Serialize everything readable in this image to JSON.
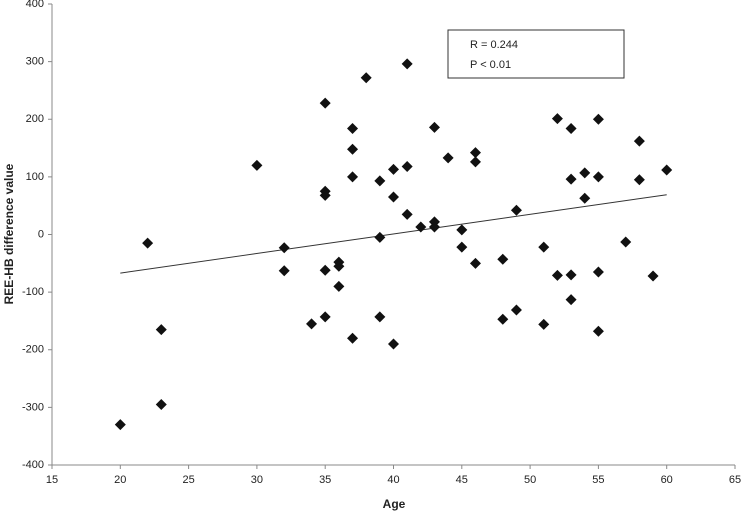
{
  "chart_data": {
    "type": "scatter",
    "xlabel": "Age",
    "ylabel": "REE-HB difference value",
    "annotations": [
      "R = 0.244",
      "P < 0.01"
    ],
    "xlim": [
      15,
      65
    ],
    "xticks": [
      15,
      20,
      25,
      30,
      35,
      40,
      45,
      50,
      55,
      60,
      65
    ],
    "ylim": [
      -400,
      400
    ],
    "yticks": [
      -400,
      -300,
      -200,
      -100,
      0,
      100,
      200,
      300,
      400
    ],
    "grid": false,
    "color": "#111111",
    "x": [
      20,
      22,
      23,
      23,
      30,
      32,
      32,
      34,
      35,
      35,
      35,
      35,
      35,
      36,
      36,
      36,
      37,
      37,
      37,
      37,
      38,
      39,
      39,
      39,
      40,
      40,
      40,
      41,
      41,
      41,
      42,
      43,
      43,
      43,
      44,
      45,
      45,
      46,
      46,
      46,
      48,
      48,
      49,
      49,
      51,
      51,
      52,
      52,
      53,
      53,
      53,
      53,
      54,
      54,
      55,
      55,
      55,
      55,
      57,
      58,
      58,
      59,
      60
    ],
    "values": [
      -330,
      -15,
      -165,
      -295,
      120,
      -23,
      -63,
      -155,
      228,
      75,
      68,
      -62,
      -143,
      -48,
      -55,
      -90,
      184,
      148,
      100,
      -180,
      272,
      93,
      -5,
      -143,
      113,
      65,
      -190,
      296,
      118,
      35,
      13,
      186,
      22,
      13,
      133,
      8,
      -22,
      142,
      126,
      -50,
      -43,
      -147,
      42,
      -131,
      -22,
      -156,
      201,
      -71,
      184,
      96,
      -70,
      -113,
      107,
      63,
      200,
      100,
      -65,
      -168,
      -13,
      162,
      95,
      -72,
      112
    ],
    "trendline": {
      "x": [
        20,
        60
      ],
      "y": [
        -67,
        69
      ]
    }
  }
}
